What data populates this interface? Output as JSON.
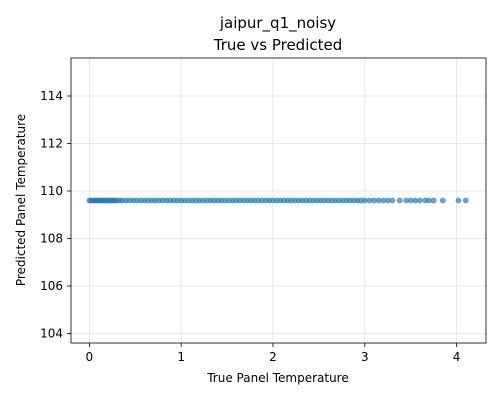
{
  "chart_data": {
    "type": "scatter",
    "title_line1": "jaipur_q1_noisy",
    "title_line2": "True vs Predicted",
    "xlabel": "True Panel Temperature",
    "ylabel": "Predicted Panel Temperature",
    "xlim": [
      -0.2,
      4.32
    ],
    "ylim": [
      103.6,
      115.6
    ],
    "xticks": [
      0,
      1,
      2,
      3,
      4
    ],
    "xtick_labels": [
      "0",
      "1",
      "2",
      "3",
      "4"
    ],
    "yticks": [
      104,
      106,
      108,
      110,
      112,
      114
    ],
    "ytick_labels": [
      "104",
      "106",
      "108",
      "110",
      "112",
      "114"
    ],
    "grid": true,
    "marker_color": "#1f77b4",
    "predicted_constant": 109.6,
    "x": [
      0.0,
      0.02,
      0.04,
      0.06,
      0.08,
      0.1,
      0.12,
      0.14,
      0.16,
      0.18,
      0.2,
      0.22,
      0.24,
      0.26,
      0.28,
      0.3,
      0.33,
      0.36,
      0.4,
      0.44,
      0.48,
      0.52,
      0.56,
      0.6,
      0.64,
      0.68,
      0.72,
      0.76,
      0.8,
      0.84,
      0.88,
      0.92,
      0.96,
      1.0,
      1.04,
      1.08,
      1.12,
      1.16,
      1.2,
      1.24,
      1.28,
      1.32,
      1.36,
      1.4,
      1.44,
      1.48,
      1.52,
      1.56,
      1.6,
      1.64,
      1.68,
      1.72,
      1.76,
      1.8,
      1.84,
      1.88,
      1.92,
      1.96,
      2.0,
      2.04,
      2.08,
      2.12,
      2.16,
      2.2,
      2.24,
      2.28,
      2.32,
      2.36,
      2.4,
      2.44,
      2.48,
      2.52,
      2.56,
      2.6,
      2.64,
      2.68,
      2.72,
      2.76,
      2.8,
      2.84,
      2.88,
      2.92,
      2.96,
      3.0,
      3.05,
      3.1,
      3.15,
      3.2,
      3.25,
      3.3,
      3.38,
      3.45,
      3.5,
      3.55,
      3.6,
      3.66,
      3.7,
      3.75,
      3.85,
      4.02,
      4.1
    ],
    "y_value": 109.6
  }
}
